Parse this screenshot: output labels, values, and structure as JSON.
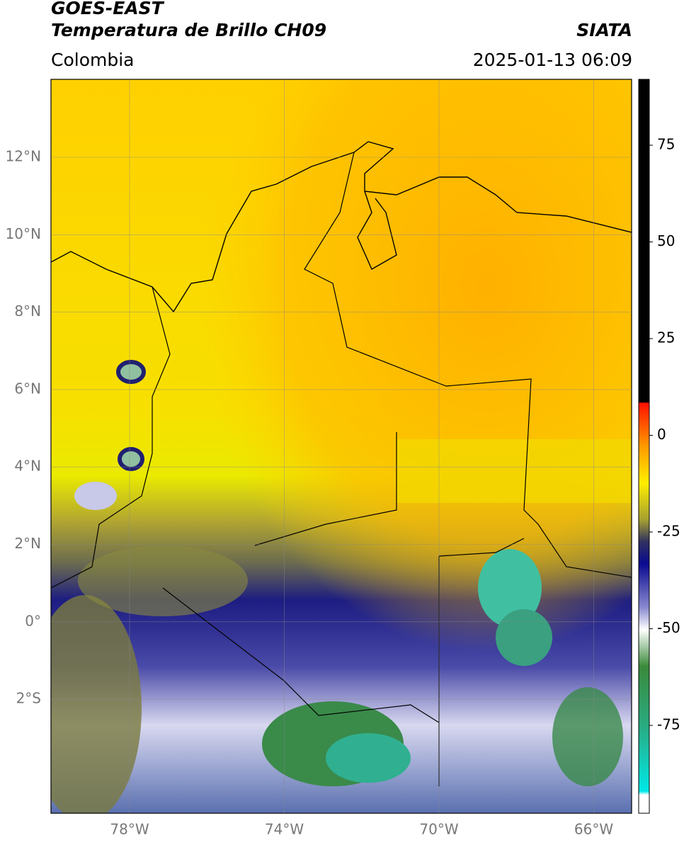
{
  "header": {
    "line1": "GOES-EAST",
    "line2": "Temperatura de Brillo CH09",
    "region": "Colombia",
    "source": "SIATA",
    "datetime": "2025-01-13 06:09"
  },
  "map": {
    "lat_labels": [
      "12°N",
      "10°N",
      "8°N",
      "6°N",
      "4°N",
      "2°N",
      "0°",
      "2°S"
    ],
    "lon_labels": [
      "78°W",
      "74°W",
      "70°W",
      "66°W"
    ]
  },
  "colorbar": {
    "ticks": [
      "75",
      "50",
      "25",
      "0",
      "-25",
      "-50",
      "-75"
    ]
  }
}
